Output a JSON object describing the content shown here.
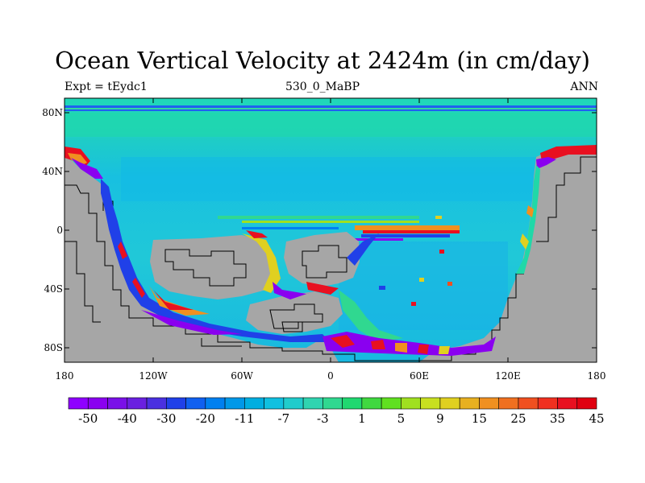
{
  "title": "Ocean Vertical Velocity at 2424m (in cm/day)",
  "subtitle_left": "Expt = tEydc1",
  "subtitle_center": "530_0_MaBP",
  "subtitle_right": "ANN",
  "lat_ticks": [
    "80N",
    "40N",
    "0",
    "40S",
    "80S"
  ],
  "lon_ticks": [
    "180",
    "120W",
    "60W",
    "0",
    "60E",
    "120E",
    "180"
  ],
  "colorbar": {
    "labels": [
      "-50",
      "-40",
      "-30",
      "-20",
      "-11",
      "-7",
      "-3",
      "1",
      "5",
      "9",
      "15",
      "25",
      "35",
      "45"
    ],
    "colors": [
      "#8f00ff",
      "#8a00f0",
      "#7a10e8",
      "#6a20e0",
      "#4a30e0",
      "#2040e8",
      "#1060f0",
      "#0080f0",
      "#0098e8",
      "#00aee0",
      "#10c0e0",
      "#20cccc",
      "#30d4b0",
      "#30d890",
      "#20d870",
      "#40d840",
      "#60e020",
      "#a0e020",
      "#c8e020",
      "#e0d020",
      "#e8b020",
      "#f09020",
      "#f07020",
      "#f05020",
      "#f03020",
      "#e81020",
      "#e00010"
    ]
  },
  "map_colors": {
    "land": "#a6a6a6",
    "ocean_background": "#18c8d8",
    "ocean_band": "#20d8b0",
    "upwelling": "#e80010",
    "downwelling": "#8800f0",
    "coastline": "#000000"
  }
}
